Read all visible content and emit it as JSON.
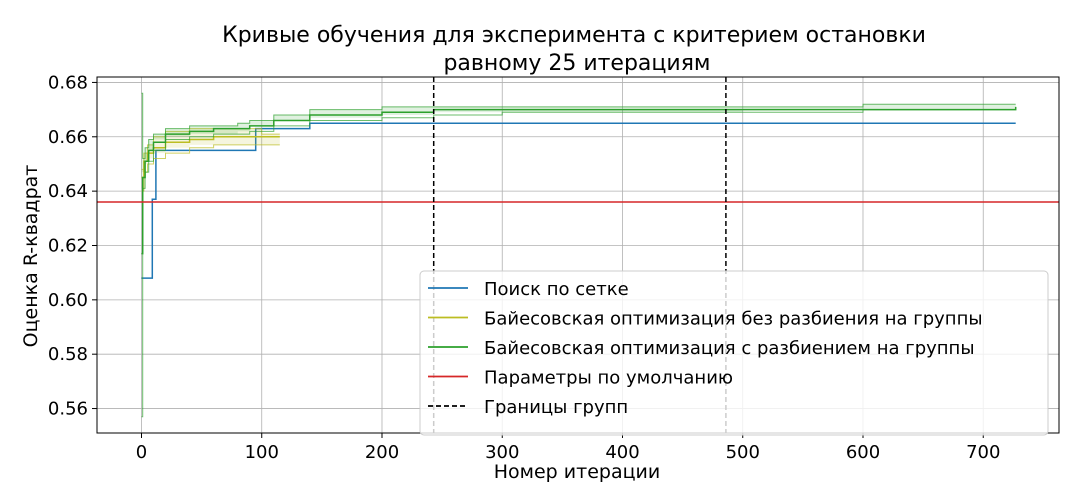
{
  "chart_data": {
    "type": "line",
    "title_lines": [
      "Кривые обучения для эксперимента с критерием остановки",
      "равному 25 итерациям"
    ],
    "xlabel": "Номер итерации",
    "ylabel": "Оценка R-квадрат",
    "xlim": [
      -37,
      763
    ],
    "ylim": [
      0.551,
      0.682
    ],
    "xticks": [
      0,
      100,
      200,
      300,
      400,
      500,
      600,
      700
    ],
    "yticks": [
      0.56,
      0.58,
      0.6,
      0.62,
      0.64,
      0.66,
      0.68
    ],
    "grid": true,
    "legend_placement": "lower-right",
    "series": [
      {
        "name": "Поиск по сетке",
        "color": "#1f77b4",
        "style": "solid",
        "x": [
          0,
          9,
          9,
          12,
          12,
          95,
          95,
          140,
          140,
          727
        ],
        "y": [
          0.608,
          0.608,
          0.637,
          0.637,
          0.655,
          0.655,
          0.663,
          0.663,
          0.665,
          0.665
        ]
      },
      {
        "name": "Байесовская оптимизация без разбиения на группы",
        "color": "#bcbd22",
        "style": "solid",
        "x": [
          0,
          2,
          5,
          10,
          20,
          40,
          60,
          80,
          100,
          115
        ],
        "y": [
          0.645,
          0.651,
          0.654,
          0.656,
          0.658,
          0.659,
          0.66,
          0.66,
          0.66,
          0.66
        ],
        "band_low": [
          0.64,
          0.647,
          0.65,
          0.652,
          0.654,
          0.656,
          0.657,
          0.657,
          0.657,
          0.657
        ],
        "band_high": [
          0.648,
          0.654,
          0.657,
          0.66,
          0.662,
          0.663,
          0.663,
          0.663,
          0.661,
          0.661
        ]
      },
      {
        "name": "Байесовская оптимизация с разбиением на группы",
        "color": "#2ca02c",
        "style": "solid",
        "x": [
          0,
          1,
          3,
          6,
          10,
          20,
          40,
          60,
          80,
          90,
          110,
          140,
          200,
          243,
          300,
          400,
          500,
          600,
          727
        ],
        "y": [
          0.617,
          0.645,
          0.651,
          0.655,
          0.658,
          0.661,
          0.662,
          0.663,
          0.663,
          0.664,
          0.666,
          0.668,
          0.669,
          0.67,
          0.67,
          0.67,
          0.67,
          0.67,
          0.671
        ],
        "band_low": [
          0.557,
          0.641,
          0.647,
          0.651,
          0.655,
          0.659,
          0.66,
          0.661,
          0.661,
          0.662,
          0.664,
          0.666,
          0.667,
          0.668,
          0.669,
          0.669,
          0.669,
          0.67,
          0.67
        ],
        "band_high": [
          0.676,
          0.652,
          0.656,
          0.659,
          0.661,
          0.663,
          0.664,
          0.664,
          0.665,
          0.666,
          0.668,
          0.67,
          0.671,
          0.671,
          0.671,
          0.671,
          0.671,
          0.672,
          0.672
        ]
      },
      {
        "name": "Параметры по умолчанию",
        "color": "#d62728",
        "style": "solid",
        "horizontal": 0.636
      },
      {
        "name": "Границы групп",
        "color": "#000000",
        "style": "dashed",
        "vertical": [
          243,
          486
        ]
      }
    ]
  }
}
